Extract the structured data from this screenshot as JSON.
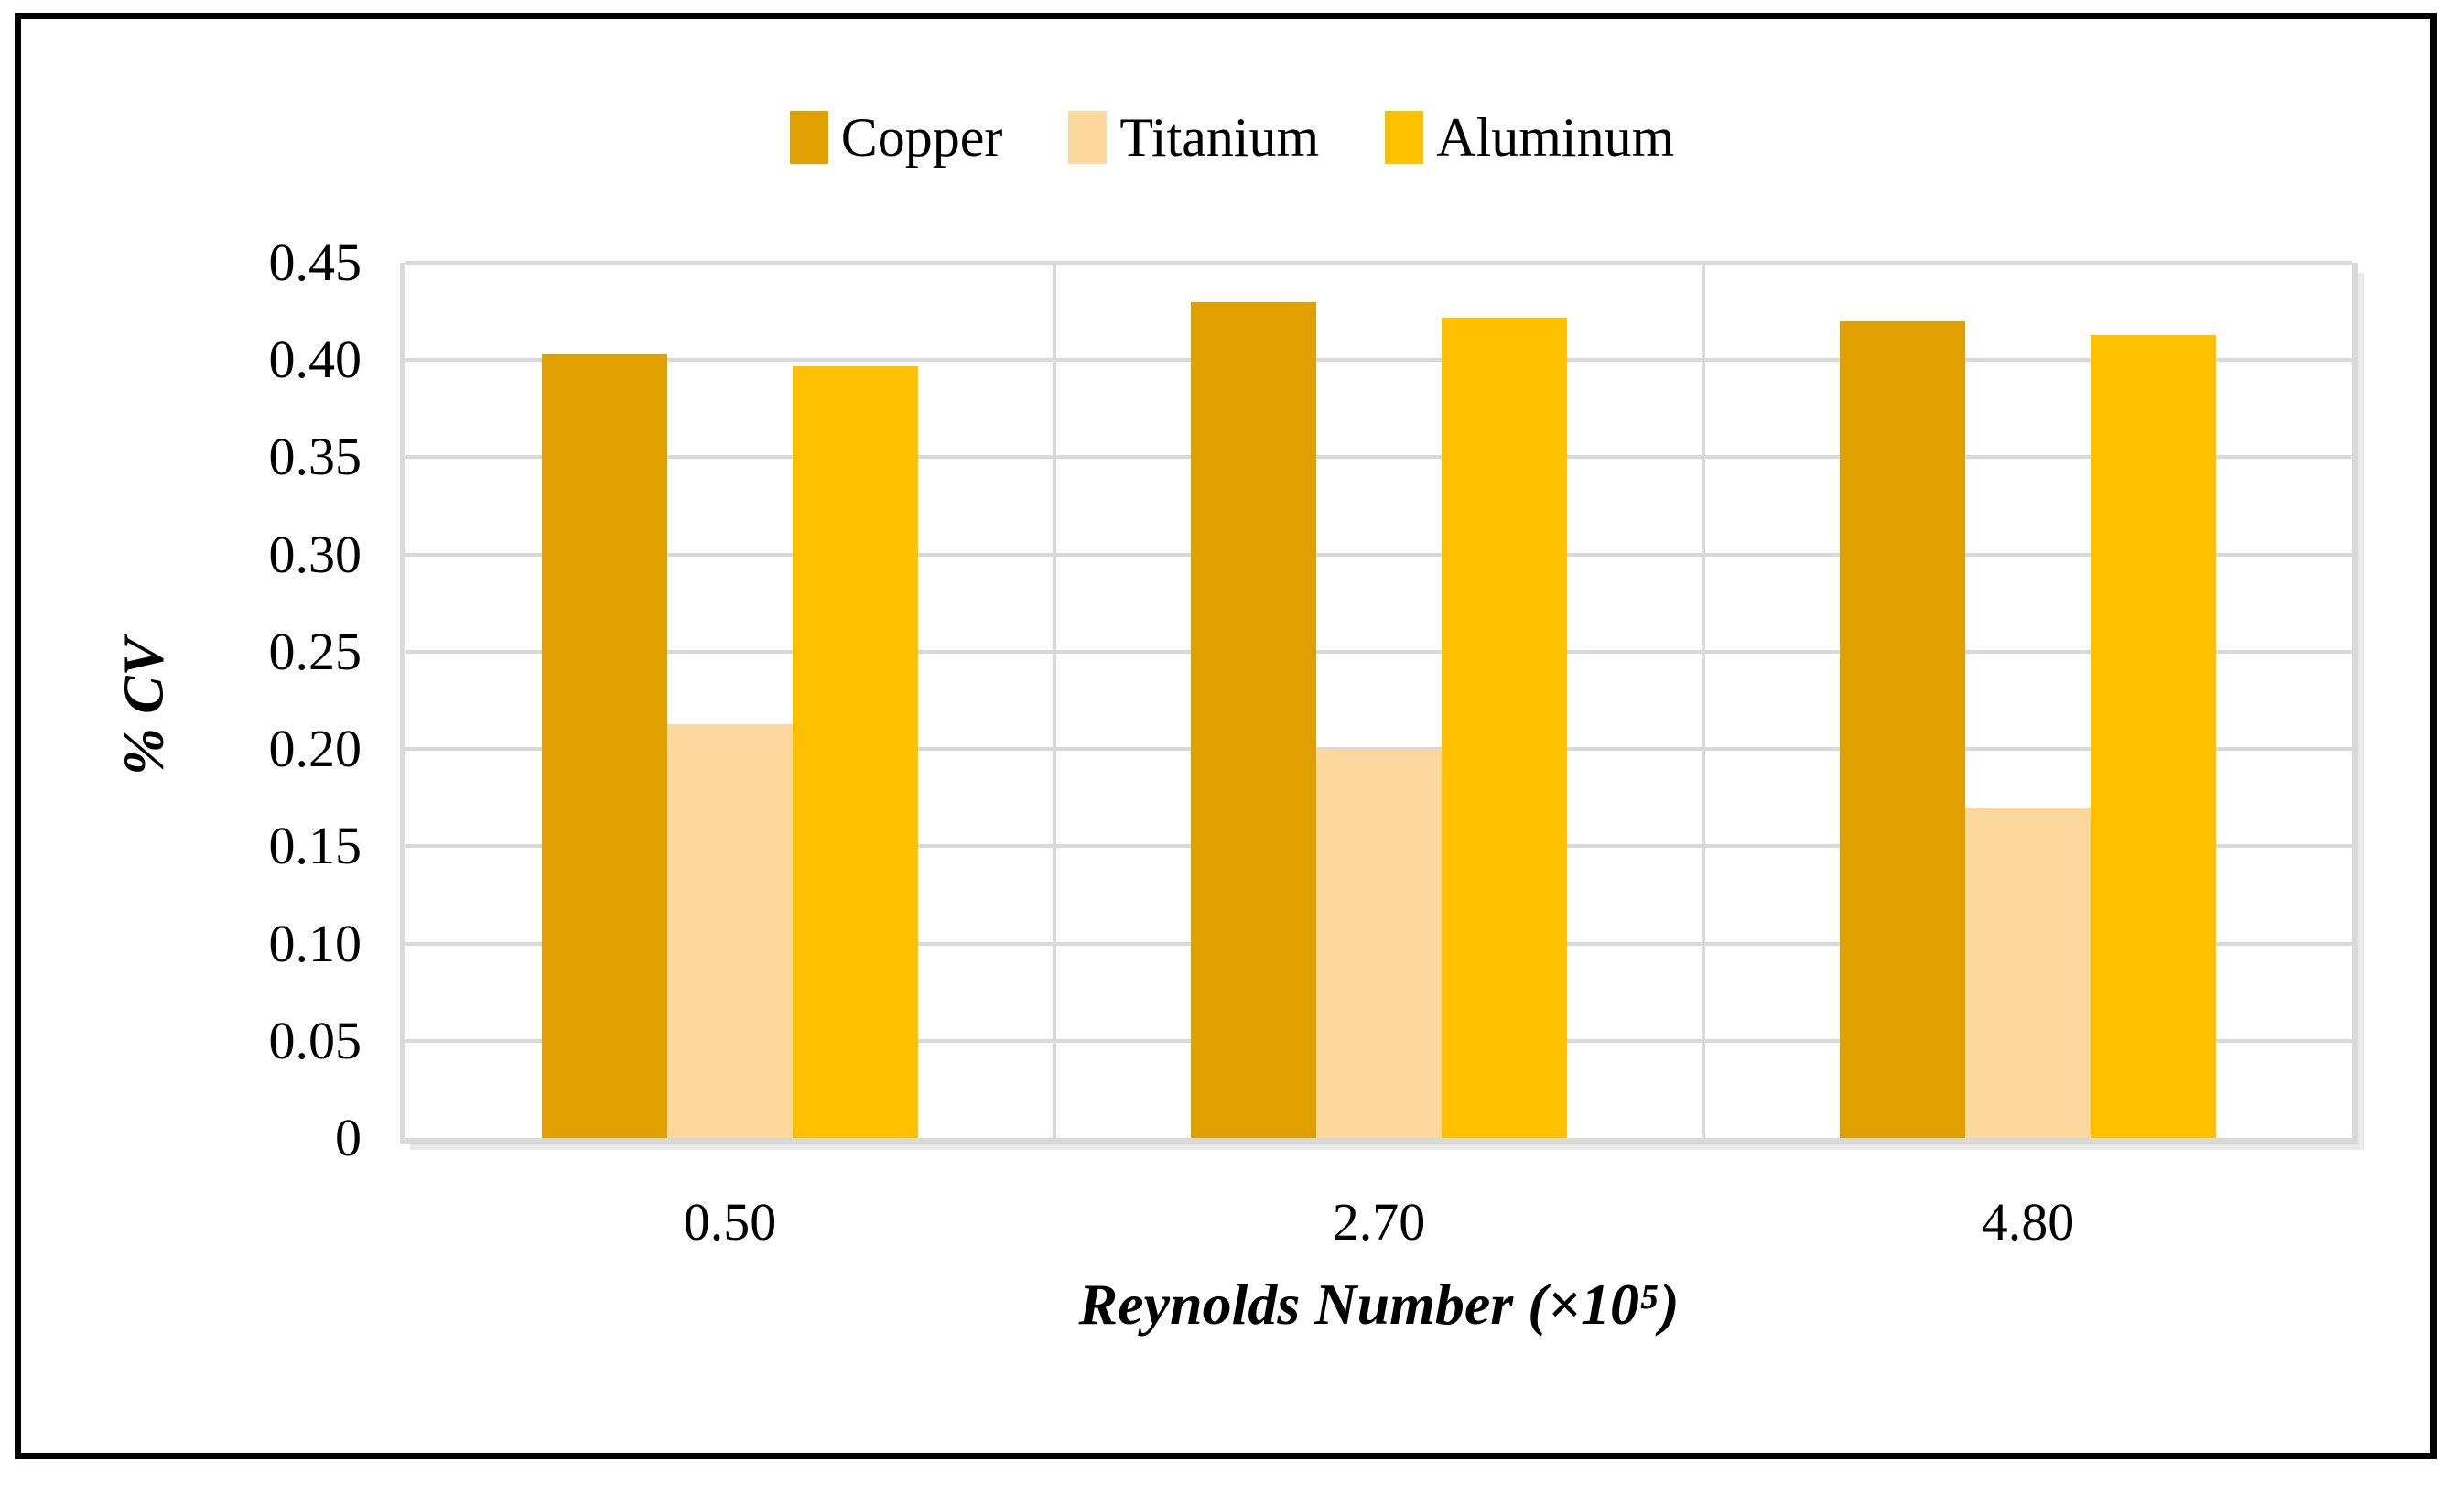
{
  "chart_data": {
    "type": "bar",
    "title": "",
    "categories": [
      "0.50",
      "2.70",
      "4.80"
    ],
    "series": [
      {
        "name": "Copper",
        "color": "#E0A000",
        "values": [
          0.403,
          0.43,
          0.42
        ]
      },
      {
        "name": "Titanium",
        "color": "#FDD89E",
        "values": [
          0.213,
          0.2,
          0.17
        ]
      },
      {
        "name": "Aluminum",
        "color": "#FFC000",
        "values": [
          0.397,
          0.422,
          0.413
        ]
      }
    ],
    "xlabel": "Reynolds Number (×10⁵)",
    "ylabel": "% CV",
    "ylim": [
      0,
      0.45
    ],
    "ytick_step": 0.05,
    "ytick_labels": [
      "0.45",
      "0.40",
      "0.35",
      "0.30",
      "0.25",
      "0.20",
      "0.15",
      "0.10",
      "0.05",
      "0"
    ],
    "legend_position": "top-center",
    "grid": true,
    "gridline_color": "#D9D9D9",
    "axis_line_color": "#D9D9D9",
    "border_color": "#000000",
    "background_color": "#FFFFFF"
  }
}
